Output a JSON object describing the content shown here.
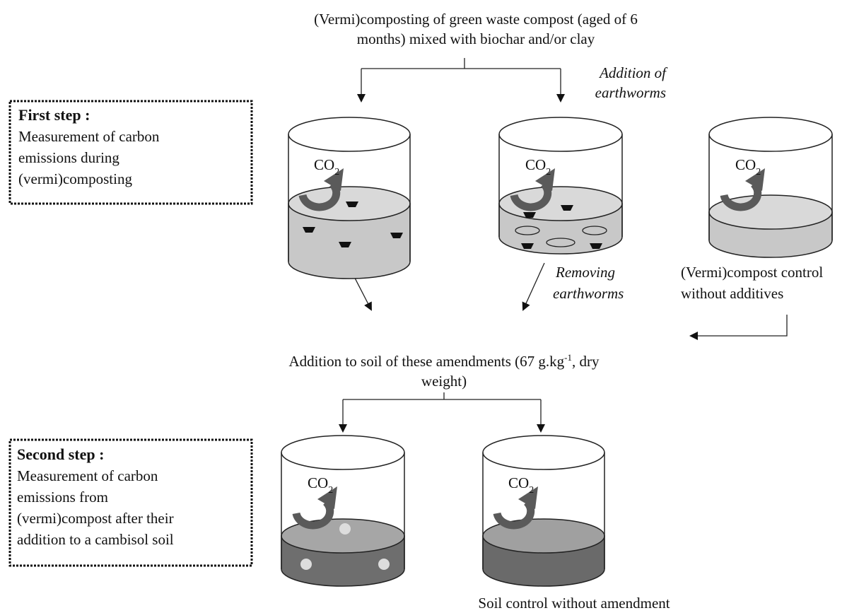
{
  "header": {
    "lines": [
      "(Vermi)composting of green waste compost (aged of 6",
      "months) mixed with biochar and/or clay"
    ]
  },
  "first_step": {
    "title": "First step :",
    "lines": [
      "Measurement of carbon",
      "emissions during",
      "(vermi)composting"
    ]
  },
  "second_step": {
    "title": "Second step :",
    "lines": [
      "Measurement of carbon",
      "emissions from",
      "(vermi)compost after their",
      "addition to a cambisol soil"
    ]
  },
  "addition_earthworms": [
    "Addition of",
    "earthworms"
  ],
  "removing_earthworms": [
    "Removing",
    "earthworms"
  ],
  "compost_control": [
    "(Vermi)compost control",
    "without additives"
  ],
  "soil_addition": {
    "line1": "Addition to soil of these amendments (67 g.kg",
    "sup": "-1",
    "line1_end": ", dry",
    "line2": "weight)"
  },
  "soil_control": "Soil control without amendment",
  "co2": {
    "base": "CO",
    "sub": "2"
  }
}
